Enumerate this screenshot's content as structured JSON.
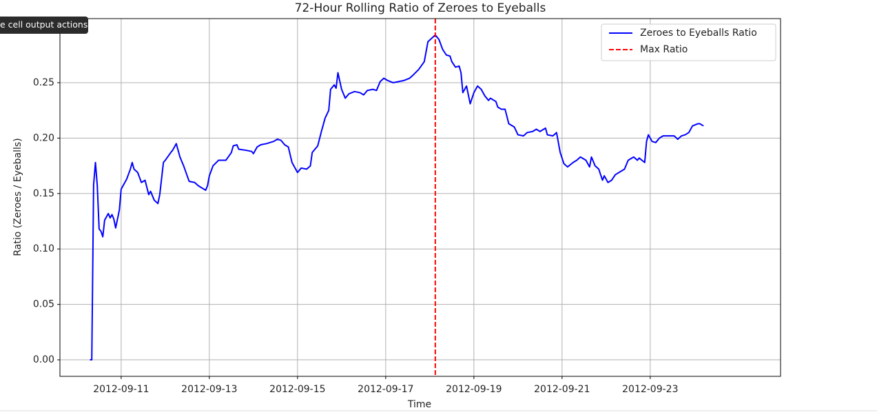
{
  "tooltip": "e cell output actions",
  "chart_data": {
    "type": "line",
    "title": "72-Hour Rolling Ratio of Zeroes to Eyeballs",
    "x_label": "Time",
    "y_label": "Ratio (Zeroes / Eyeballs)",
    "xlim": [
      "2012-09-09 14:40",
      "2012-09-25 22:57"
    ],
    "xticks": [
      "2012-09-11",
      "2012-09-13",
      "2012-09-15",
      "2012-09-17",
      "2012-09-19",
      "2012-09-21",
      "2012-09-23"
    ],
    "ylim": [
      -0.0149,
      0.3078
    ],
    "yticks": [
      {
        "value": 0,
        "label": "0.00"
      },
      0.05,
      {
        "value": 0.1,
        "label": "0.10"
      },
      0.15,
      {
        "value": 0.2,
        "label": "0.20"
      },
      0.25
    ],
    "grid": true,
    "legend": "upper right",
    "series": [
      {
        "name": "Zeroes to Eyeballs Ratio",
        "color": "#0000ff",
        "x": [
          "2012-09-10 07:00",
          "2012-09-10 08:00",
          "2012-09-10 09:00",
          "2012-09-10 10:00",
          "2012-09-10 11:00",
          "2012-09-10 12:00",
          "2012-09-10 13:00",
          "2012-09-10 14:00",
          "2012-09-10 15:00",
          "2012-09-10 17:00",
          "2012-09-10 18:00",
          "2012-09-10 19:00",
          "2012-09-10 20:00",
          "2012-09-10 21:00",
          "2012-09-10 23:00",
          "2012-09-11 00:00",
          "2012-09-11 03:00",
          "2012-09-11 05:00",
          "2012-09-11 06:00",
          "2012-09-11 07:00",
          "2012-09-11 09:00",
          "2012-09-11 11:00",
          "2012-09-11 13:00",
          "2012-09-11 15:00",
          "2012-09-11 16:00",
          "2012-09-11 18:00",
          "2012-09-11 20:00",
          "2012-09-11 21:00",
          "2012-09-11 23:00",
          "2012-09-12 00:00",
          "2012-09-12 03:00",
          "2012-09-12 04:00",
          "2012-09-12 06:00",
          "2012-09-12 08:00",
          "2012-09-12 10:00",
          "2012-09-12 13:00",
          "2012-09-12 16:00",
          "2012-09-12 18:00",
          "2012-09-12 22:00",
          "2012-09-12 23:00",
          "2012-09-13 00:00",
          "2012-09-13 02:00",
          "2012-09-13 05:00",
          "2012-09-13 09:00",
          "2012-09-13 12:00",
          "2012-09-13 13:00",
          "2012-09-13 15:00",
          "2012-09-13 16:00",
          "2012-09-13 20:00",
          "2012-09-13 23:00",
          "2012-09-14 00:00",
          "2012-09-14 02:00",
          "2012-09-14 04:00",
          "2012-09-14 07:00",
          "2012-09-14 09:00",
          "2012-09-14 11:00",
          "2012-09-14 13:00",
          "2012-09-14 15:00",
          "2012-09-14 17:00",
          "2012-09-14 19:00",
          "2012-09-14 21:00",
          "2012-09-15 00:00",
          "2012-09-15 02:00",
          "2012-09-15 05:00",
          "2012-09-15 07:00",
          "2012-09-15 08:00",
          "2012-09-15 11:00",
          "2012-09-15 13:00",
          "2012-09-15 15:00",
          "2012-09-15 17:00",
          "2012-09-15 18:00",
          "2012-09-15 20:00",
          "2012-09-15 21:00",
          "2012-09-15 22:00",
          "2012-09-16 00:00",
          "2012-09-16 02:00",
          "2012-09-16 04:00",
          "2012-09-16 07:00",
          "2012-09-16 10:00",
          "2012-09-16 12:00",
          "2012-09-16 14:00",
          "2012-09-16 17:00",
          "2012-09-16 19:00",
          "2012-09-16 21:00",
          "2012-09-16 23:00",
          "2012-09-17 01:00",
          "2012-09-17 04:00",
          "2012-09-17 07:00",
          "2012-09-17 10:00",
          "2012-09-17 13:00",
          "2012-09-17 15:00",
          "2012-09-17 18:00",
          "2012-09-17 21:00",
          "2012-09-17 23:00",
          "2012-09-18 01:00",
          "2012-09-18 03:00",
          "2012-09-18 05:00",
          "2012-09-18 07:00",
          "2012-09-18 09:00",
          "2012-09-18 11:00",
          "2012-09-18 12:00",
          "2012-09-18 14:00",
          "2012-09-18 16:00",
          "2012-09-18 17:00",
          "2012-09-18 18:00",
          "2012-09-18 20:00",
          "2012-09-18 22:00",
          "2012-09-19 00:00",
          "2012-09-19 02:00",
          "2012-09-19 04:00",
          "2012-09-19 06:00",
          "2012-09-19 08:00",
          "2012-09-19 09:00",
          "2012-09-19 12:00",
          "2012-09-19 13:00",
          "2012-09-19 15:00",
          "2012-09-19 17:00",
          "2012-09-19 19:00",
          "2012-09-19 22:00",
          "2012-09-20 00:00",
          "2012-09-20 03:00",
          "2012-09-20 05:00",
          "2012-09-20 08:00",
          "2012-09-20 10:00",
          "2012-09-20 12:00",
          "2012-09-20 15:00",
          "2012-09-20 16:00",
          "2012-09-20 19:00",
          "2012-09-20 21:00",
          "2012-09-20 23:00",
          "2012-09-21 01:00",
          "2012-09-21 03:00",
          "2012-09-21 06:00",
          "2012-09-21 08:00",
          "2012-09-21 10:00",
          "2012-09-21 13:00",
          "2012-09-21 15:00",
          "2012-09-21 16:00",
          "2012-09-21 18:00",
          "2012-09-21 20:00",
          "2012-09-21 22:00",
          "2012-09-21 23:00",
          "2012-09-22 01:00",
          "2012-09-22 03:00",
          "2012-09-22 05:00",
          "2012-09-22 08:00",
          "2012-09-22 10:00",
          "2012-09-22 12:00",
          "2012-09-22 15:00",
          "2012-09-22 17:00",
          "2012-09-22 18:00",
          "2012-09-22 21:00",
          "2012-09-22 22:00",
          "2012-09-22 23:00",
          "2012-09-23 01:00",
          "2012-09-23 03:00",
          "2012-09-23 05:00",
          "2012-09-23 07:00",
          "2012-09-23 10:00",
          "2012-09-23 13:00",
          "2012-09-23 15:00",
          "2012-09-23 17:00",
          "2012-09-23 19:00",
          "2012-09-23 21:00",
          "2012-09-23 23:00",
          "2012-09-24 02:00",
          "2012-09-24 03:00",
          "2012-09-24 05:00"
        ],
        "values": [
          0,
          0,
          0.158,
          0.178,
          0.157,
          0.118,
          0.116,
          0.111,
          0.126,
          0.132,
          0.128,
          0.131,
          0.127,
          0.119,
          0.135,
          0.154,
          0.163,
          0.172,
          0.178,
          0.172,
          0.169,
          0.16,
          0.162,
          0.149,
          0.152,
          0.144,
          0.141,
          0.149,
          0.178,
          0.18,
          0.187,
          0.189,
          0.195,
          0.183,
          0.175,
          0.161,
          0.16,
          0.157,
          0.153,
          0.157,
          0.166,
          0.175,
          0.18,
          0.18,
          0.187,
          0.193,
          0.194,
          0.19,
          0.189,
          0.188,
          0.186,
          0.192,
          0.194,
          0.195,
          0.196,
          0.197,
          0.199,
          0.198,
          0.194,
          0.192,
          0.178,
          0.169,
          0.173,
          0.172,
          0.175,
          0.187,
          0.193,
          0.206,
          0.218,
          0.225,
          0.244,
          0.248,
          0.245,
          0.259,
          0.244,
          0.236,
          0.24,
          0.242,
          0.241,
          0.239,
          0.243,
          0.244,
          0.243,
          0.251,
          0.254,
          0.252,
          0.25,
          0.251,
          0.252,
          0.254,
          0.257,
          0.262,
          0.269,
          0.287,
          0.29,
          0.293,
          0.289,
          0.28,
          0.275,
          0.274,
          0.269,
          0.264,
          0.265,
          0.259,
          0.241,
          0.247,
          0.231,
          0.241,
          0.247,
          0.244,
          0.238,
          0.234,
          0.236,
          0.233,
          0.228,
          0.226,
          0.226,
          0.213,
          0.21,
          0.203,
          0.202,
          0.205,
          0.206,
          0.208,
          0.206,
          0.209,
          0.203,
          0.202,
          0.205,
          0.187,
          0.177,
          0.174,
          0.178,
          0.18,
          0.183,
          0.18,
          0.174,
          0.183,
          0.175,
          0.172,
          0.162,
          0.166,
          0.16,
          0.162,
          0.167,
          0.17,
          0.172,
          0.18,
          0.183,
          0.18,
          0.182,
          0.178,
          0.197,
          0.203,
          0.197,
          0.196,
          0.2,
          0.202,
          0.202,
          0.202,
          0.199,
          0.202,
          0.203,
          0.205,
          0.211,
          0.213,
          0.213,
          0.211
        ]
      },
      {
        "name": "Max Ratio",
        "color": "#ff0000",
        "style": "dashed",
        "x": "2012-09-18 03:00"
      }
    ]
  }
}
